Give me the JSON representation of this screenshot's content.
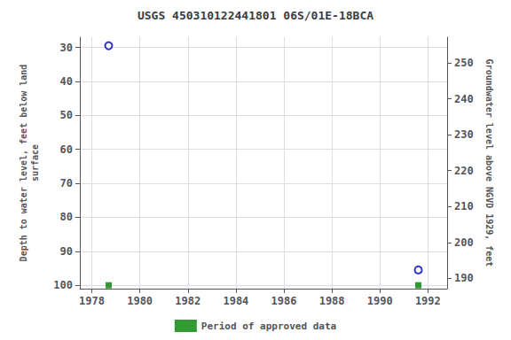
{
  "chart_data": {
    "type": "scatter",
    "title": "USGS 450310122441801 06S/01E-18BCA",
    "ylabel": "Depth to water level, feet below land\nsurface",
    "y2label": "Groundwater level above NGVD 1929, feet",
    "xlim": [
      1977.5,
      1992.8
    ],
    "xticks": [
      1978,
      1980,
      1982,
      1984,
      1986,
      1988,
      1990,
      1992
    ],
    "ylim": [
      101,
      27
    ],
    "yticks": [
      30,
      40,
      50,
      60,
      70,
      80,
      90,
      100
    ],
    "y2lim": [
      187.14,
      257.14
    ],
    "y2ticks": [
      190,
      200,
      210,
      220,
      230,
      240,
      250
    ],
    "grid": true,
    "legend": "bottom",
    "series": [
      {
        "color": "#0000cc",
        "marker": "open_circle",
        "x": [
          1978.7,
          1991.6
        ],
        "values": [
          29.5,
          95.5
        ]
      },
      {
        "name": "Period of approved data",
        "color": "#008000",
        "marker": "square",
        "x": [
          1978.7,
          1991.6
        ],
        "values": [
          100,
          100
        ]
      }
    ]
  }
}
